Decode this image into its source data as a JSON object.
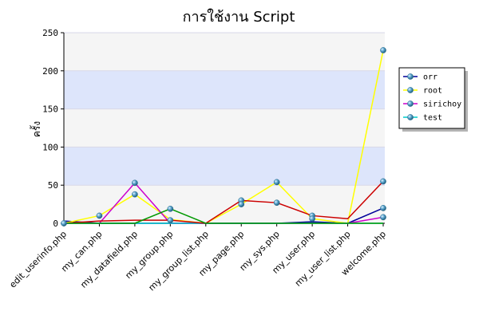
{
  "chart_data": {
    "type": "line",
    "title": "การใช้งาน Script",
    "ylabel": "ครั้ง",
    "xlabel": "",
    "ylim": [
      0,
      250
    ],
    "yticks": [
      0,
      50,
      100,
      150,
      200,
      250
    ],
    "grid": true,
    "legend_position": "right",
    "categories": [
      "edit_userinfo.php",
      "my_can.php",
      "my_datafield.php",
      "my_group.php",
      "my_group_list.php",
      "my_page.php",
      "my_sys.php",
      "my_user.php",
      "my_user_list.php",
      "welcome.php"
    ],
    "series": [
      {
        "name": "orr",
        "color": "#000099",
        "values": [
          3,
          0,
          0,
          0,
          0,
          0,
          0,
          2,
          0,
          20
        ]
      },
      {
        "name": "root",
        "color": "#ffff00",
        "values": [
          0,
          10,
          38,
          5,
          0,
          25,
          54,
          6,
          0,
          227
        ]
      },
      {
        "name": "sirichoy",
        "color": "#cc00cc",
        "values": [
          0,
          0,
          53,
          0,
          0,
          0,
          0,
          0,
          0,
          8
        ]
      },
      {
        "name": "test",
        "color": "#00cccc",
        "values": [
          0,
          0,
          0,
          0,
          0,
          0,
          0,
          0,
          0,
          0
        ]
      },
      {
        "name": "",
        "color": "#cc0000",
        "values": [
          0,
          3,
          4,
          4,
          0,
          30,
          27,
          10,
          6,
          55
        ]
      },
      {
        "name": "",
        "color": "#009900",
        "values": [
          0,
          0,
          0,
          19,
          0,
          0,
          0,
          0,
          0,
          0
        ]
      }
    ],
    "markers": [
      {
        "category": "edit_userinfo.php",
        "value": 0
      },
      {
        "category": "my_can.php",
        "value": 10
      },
      {
        "category": "my_datafield.php",
        "value": 53
      },
      {
        "category": "my_datafield.php",
        "value": 38
      },
      {
        "category": "my_group.php",
        "value": 19
      },
      {
        "category": "my_group.php",
        "value": 4
      },
      {
        "category": "my_page.php",
        "value": 30
      },
      {
        "category": "my_page.php",
        "value": 25
      },
      {
        "category": "my_sys.php",
        "value": 54
      },
      {
        "category": "my_sys.php",
        "value": 27
      },
      {
        "category": "my_user.php",
        "value": 10
      },
      {
        "category": "my_user.php",
        "value": 6
      },
      {
        "category": "welcome.php",
        "value": 227
      },
      {
        "category": "welcome.php",
        "value": 55
      },
      {
        "category": "welcome.php",
        "value": 20
      },
      {
        "category": "welcome.php",
        "value": 8
      }
    ]
  }
}
